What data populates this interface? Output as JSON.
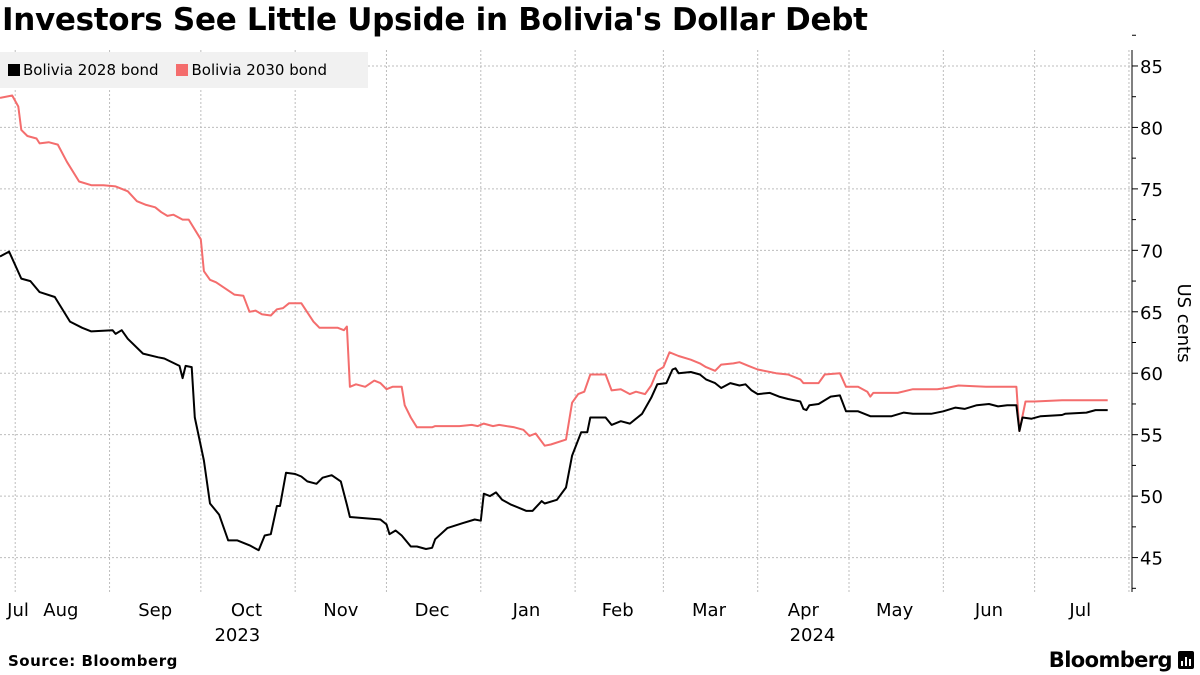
{
  "title": "Investors See Little Upside in Bolivia's Dollar Debt",
  "source": "Source: Bloomberg",
  "logo": "Bloomberg",
  "colors": {
    "bolivia_2028": "#000000",
    "bolivia_2030": "#f46d6d",
    "legend_bg": "#f1f1f1",
    "grid": "#bdbdbd"
  },
  "chart_data": {
    "type": "line",
    "title": "Investors See Little Upside in Bolivia's Dollar Debt",
    "ylabel": "US cents",
    "xlabel": "",
    "ylim": [
      42.2,
      86.3
    ],
    "xlim": [
      "2023-07-27",
      "2024-08-02"
    ],
    "yticks": [
      "45",
      "50",
      "55",
      "60",
      "65",
      "70",
      "75",
      "80",
      "85"
    ],
    "yaxis_side": "right",
    "grid": true,
    "legend_placement": "top-left",
    "xtick_labels": [
      {
        "label": "Jul",
        "date": "2023-07-29"
      },
      {
        "label": "Aug",
        "date": "2023-08-16"
      },
      {
        "label": "Sep",
        "date": "2023-09-16"
      },
      {
        "label": "Oct",
        "date": "2023-10-16"
      },
      {
        "label": "Nov",
        "date": "2023-11-16"
      },
      {
        "label": "Dec",
        "date": "2023-12-16"
      },
      {
        "label": "Jan",
        "date": "2024-01-16"
      },
      {
        "label": "Feb",
        "date": "2024-02-15"
      },
      {
        "label": "Mar",
        "date": "2024-03-16"
      },
      {
        "label": "Apr",
        "date": "2024-04-16"
      },
      {
        "label": "May",
        "date": "2024-05-16"
      },
      {
        "label": "Jun",
        "date": "2024-06-16"
      },
      {
        "label": "Jul",
        "date": "2024-07-16"
      }
    ],
    "year_labels": [
      {
        "label": "2023",
        "date": "2023-10-13"
      },
      {
        "label": "2024",
        "date": "2024-04-19"
      }
    ],
    "gridline_dates": [
      "2023-08-01",
      "2023-09-01",
      "2023-10-01",
      "2023-11-01",
      "2023-12-01",
      "2024-01-01",
      "2024-02-01",
      "2024-03-01",
      "2024-04-01",
      "2024-05-01",
      "2024-06-01",
      "2024-07-01",
      "2024-08-01"
    ],
    "series": [
      {
        "name": "Bolivia 2028 bond",
        "color": "#000000",
        "points": [
          [
            "2023-07-27",
            69.5
          ],
          [
            "2023-07-30",
            69.9
          ],
          [
            "2023-08-03",
            67.7
          ],
          [
            "2023-08-06",
            67.5
          ],
          [
            "2023-08-09",
            66.6
          ],
          [
            "2023-08-14",
            66.2
          ],
          [
            "2023-08-16",
            65.4
          ],
          [
            "2023-08-19",
            64.2
          ],
          [
            "2023-08-23",
            63.7
          ],
          [
            "2023-08-26",
            63.4
          ],
          [
            "2023-09-02",
            63.5
          ],
          [
            "2023-09-03",
            63.2
          ],
          [
            "2023-09-05",
            63.5
          ],
          [
            "2023-09-07",
            62.8
          ],
          [
            "2023-09-12",
            61.6
          ],
          [
            "2023-09-17",
            61.3
          ],
          [
            "2023-09-19",
            61.2
          ],
          [
            "2023-09-24",
            60.6
          ],
          [
            "2023-09-25",
            59.6
          ],
          [
            "2023-09-26",
            60.6
          ],
          [
            "2023-09-28",
            60.5
          ],
          [
            "2023-09-29",
            56.4
          ],
          [
            "2023-10-02",
            52.9
          ],
          [
            "2023-10-04",
            49.4
          ],
          [
            "2023-10-07",
            48.5
          ],
          [
            "2023-10-10",
            46.4
          ],
          [
            "2023-10-13",
            46.4
          ],
          [
            "2023-10-17",
            46.0
          ],
          [
            "2023-10-20",
            45.6
          ],
          [
            "2023-10-22",
            46.8
          ],
          [
            "2023-10-24",
            46.9
          ],
          [
            "2023-10-26",
            49.2
          ],
          [
            "2023-10-27",
            49.2
          ],
          [
            "2023-10-29",
            51.9
          ],
          [
            "2023-11-01",
            51.8
          ],
          [
            "2023-11-03",
            51.6
          ],
          [
            "2023-11-05",
            51.2
          ],
          [
            "2023-11-08",
            51.0
          ],
          [
            "2023-11-10",
            51.5
          ],
          [
            "2023-11-13",
            51.7
          ],
          [
            "2023-11-16",
            51.2
          ],
          [
            "2023-11-18",
            49.3
          ],
          [
            "2023-11-19",
            48.3
          ],
          [
            "2023-11-29",
            48.1
          ],
          [
            "2023-12-01",
            47.7
          ],
          [
            "2023-12-02",
            46.9
          ],
          [
            "2023-12-04",
            47.2
          ],
          [
            "2023-12-06",
            46.8
          ],
          [
            "2023-12-09",
            45.9
          ],
          [
            "2023-12-11",
            45.9
          ],
          [
            "2023-12-14",
            45.7
          ],
          [
            "2023-12-16",
            45.8
          ],
          [
            "2023-12-17",
            46.5
          ],
          [
            "2023-12-21",
            47.4
          ],
          [
            "2023-12-26",
            47.8
          ],
          [
            "2023-12-30",
            48.1
          ],
          [
            "2024-01-01",
            48.0
          ],
          [
            "2024-01-02",
            50.2
          ],
          [
            "2024-01-04",
            50.0
          ],
          [
            "2024-01-06",
            50.3
          ],
          [
            "2024-01-08",
            49.7
          ],
          [
            "2024-01-11",
            49.3
          ],
          [
            "2024-01-14",
            49.0
          ],
          [
            "2024-01-16",
            48.8
          ],
          [
            "2024-01-18",
            48.8
          ],
          [
            "2024-01-21",
            49.6
          ],
          [
            "2024-01-22",
            49.4
          ],
          [
            "2024-01-26",
            49.7
          ],
          [
            "2024-01-29",
            50.7
          ],
          [
            "2024-01-31",
            53.3
          ],
          [
            "2024-02-03",
            55.2
          ],
          [
            "2024-02-05",
            55.2
          ],
          [
            "2024-02-06",
            56.4
          ],
          [
            "2024-02-11",
            56.4
          ],
          [
            "2024-02-13",
            55.8
          ],
          [
            "2024-02-16",
            56.1
          ],
          [
            "2024-02-19",
            55.9
          ],
          [
            "2024-02-23",
            56.7
          ],
          [
            "2024-02-26",
            58.0
          ],
          [
            "2024-02-28",
            59.1
          ],
          [
            "2024-03-02",
            59.2
          ],
          [
            "2024-03-04",
            60.3
          ],
          [
            "2024-03-05",
            60.4
          ],
          [
            "2024-03-06",
            60.0
          ],
          [
            "2024-03-10",
            60.1
          ],
          [
            "2024-03-13",
            59.9
          ],
          [
            "2024-03-15",
            59.5
          ],
          [
            "2024-03-18",
            59.2
          ],
          [
            "2024-03-20",
            58.8
          ],
          [
            "2024-03-23",
            59.2
          ],
          [
            "2024-03-26",
            59.0
          ],
          [
            "2024-03-28",
            59.1
          ],
          [
            "2024-03-30",
            58.6
          ],
          [
            "2024-04-01",
            58.3
          ],
          [
            "2024-04-05",
            58.4
          ],
          [
            "2024-04-08",
            58.1
          ],
          [
            "2024-04-11",
            57.9
          ],
          [
            "2024-04-15",
            57.7
          ],
          [
            "2024-04-16",
            57.1
          ],
          [
            "2024-04-17",
            57.0
          ],
          [
            "2024-04-18",
            57.4
          ],
          [
            "2024-04-21",
            57.5
          ],
          [
            "2024-04-25",
            58.1
          ],
          [
            "2024-04-28",
            58.2
          ],
          [
            "2024-04-30",
            56.9
          ],
          [
            "2024-05-04",
            56.9
          ],
          [
            "2024-05-08",
            56.5
          ],
          [
            "2024-05-15",
            56.5
          ],
          [
            "2024-05-19",
            56.8
          ],
          [
            "2024-05-22",
            56.7
          ],
          [
            "2024-05-28",
            56.7
          ],
          [
            "2024-06-01",
            56.9
          ],
          [
            "2024-06-05",
            57.2
          ],
          [
            "2024-06-08",
            57.1
          ],
          [
            "2024-06-12",
            57.4
          ],
          [
            "2024-06-16",
            57.5
          ],
          [
            "2024-06-19",
            57.3
          ],
          [
            "2024-06-22",
            57.4
          ],
          [
            "2024-06-25",
            57.4
          ],
          [
            "2024-06-26",
            55.3
          ],
          [
            "2024-06-27",
            56.4
          ],
          [
            "2024-06-30",
            56.3
          ],
          [
            "2024-07-03",
            56.5
          ],
          [
            "2024-07-10",
            56.6
          ],
          [
            "2024-07-11",
            56.7
          ],
          [
            "2024-07-18",
            56.8
          ],
          [
            "2024-07-21",
            57.0
          ],
          [
            "2024-07-25",
            57.0
          ]
        ]
      },
      {
        "name": "Bolivia 2030 bond",
        "color": "#f46d6d",
        "points": [
          [
            "2023-07-27",
            82.4
          ],
          [
            "2023-07-31",
            82.6
          ],
          [
            "2023-08-02",
            81.7
          ],
          [
            "2023-08-03",
            79.8
          ],
          [
            "2023-08-05",
            79.3
          ],
          [
            "2023-08-08",
            79.1
          ],
          [
            "2023-08-09",
            78.7
          ],
          [
            "2023-08-12",
            78.8
          ],
          [
            "2023-08-15",
            78.6
          ],
          [
            "2023-08-18",
            77.2
          ],
          [
            "2023-08-22",
            75.6
          ],
          [
            "2023-08-26",
            75.3
          ],
          [
            "2023-08-30",
            75.3
          ],
          [
            "2023-09-03",
            75.2
          ],
          [
            "2023-09-07",
            74.8
          ],
          [
            "2023-09-10",
            74.0
          ],
          [
            "2023-09-13",
            73.7
          ],
          [
            "2023-09-16",
            73.5
          ],
          [
            "2023-09-18",
            73.1
          ],
          [
            "2023-09-20",
            72.8
          ],
          [
            "2023-09-22",
            72.9
          ],
          [
            "2023-09-25",
            72.5
          ],
          [
            "2023-09-27",
            72.5
          ],
          [
            "2023-10-01",
            70.9
          ],
          [
            "2023-10-02",
            68.3
          ],
          [
            "2023-10-04",
            67.6
          ],
          [
            "2023-10-06",
            67.4
          ],
          [
            "2023-10-09",
            66.9
          ],
          [
            "2023-10-12",
            66.4
          ],
          [
            "2023-10-15",
            66.3
          ],
          [
            "2023-10-17",
            65.0
          ],
          [
            "2023-10-19",
            65.1
          ],
          [
            "2023-10-21",
            64.8
          ],
          [
            "2023-10-24",
            64.7
          ],
          [
            "2023-10-26",
            65.2
          ],
          [
            "2023-10-28",
            65.3
          ],
          [
            "2023-10-30",
            65.7
          ],
          [
            "2023-11-03",
            65.7
          ],
          [
            "2023-11-07",
            64.2
          ],
          [
            "2023-11-09",
            63.7
          ],
          [
            "2023-11-15",
            63.7
          ],
          [
            "2023-11-17",
            63.5
          ],
          [
            "2023-11-18",
            63.8
          ],
          [
            "2023-11-19",
            58.9
          ],
          [
            "2023-11-21",
            59.1
          ],
          [
            "2023-11-24",
            58.9
          ],
          [
            "2023-11-27",
            59.4
          ],
          [
            "2023-11-29",
            59.2
          ],
          [
            "2023-12-01",
            58.7
          ],
          [
            "2023-12-03",
            58.9
          ],
          [
            "2023-12-06",
            58.9
          ],
          [
            "2023-12-07",
            57.4
          ],
          [
            "2023-12-09",
            56.4
          ],
          [
            "2023-12-11",
            55.6
          ],
          [
            "2023-12-16",
            55.6
          ],
          [
            "2023-12-17",
            55.7
          ],
          [
            "2023-12-25",
            55.7
          ],
          [
            "2023-12-29",
            55.8
          ],
          [
            "2023-12-31",
            55.7
          ],
          [
            "2024-01-02",
            55.9
          ],
          [
            "2024-01-05",
            55.7
          ],
          [
            "2024-01-07",
            55.8
          ],
          [
            "2024-01-12",
            55.6
          ],
          [
            "2024-01-15",
            55.4
          ],
          [
            "2024-01-17",
            54.9
          ],
          [
            "2024-01-19",
            55.1
          ],
          [
            "2024-01-22",
            54.1
          ],
          [
            "2024-01-24",
            54.2
          ],
          [
            "2024-01-29",
            54.6
          ],
          [
            "2024-01-31",
            57.6
          ],
          [
            "2024-02-02",
            58.3
          ],
          [
            "2024-02-04",
            58.5
          ],
          [
            "2024-02-06",
            59.9
          ],
          [
            "2024-02-11",
            59.9
          ],
          [
            "2024-02-13",
            58.6
          ],
          [
            "2024-02-16",
            58.7
          ],
          [
            "2024-02-19",
            58.3
          ],
          [
            "2024-02-21",
            58.5
          ],
          [
            "2024-02-24",
            58.3
          ],
          [
            "2024-02-26",
            59.0
          ],
          [
            "2024-02-28",
            60.2
          ],
          [
            "2024-03-01",
            60.5
          ],
          [
            "2024-03-03",
            61.7
          ],
          [
            "2024-03-06",
            61.4
          ],
          [
            "2024-03-10",
            61.1
          ],
          [
            "2024-03-13",
            60.8
          ],
          [
            "2024-03-15",
            60.5
          ],
          [
            "2024-03-18",
            60.2
          ],
          [
            "2024-03-20",
            60.7
          ],
          [
            "2024-03-24",
            60.8
          ],
          [
            "2024-03-26",
            60.9
          ],
          [
            "2024-03-29",
            60.6
          ],
          [
            "2024-04-01",
            60.3
          ],
          [
            "2024-04-07",
            60.0
          ],
          [
            "2024-04-11",
            59.9
          ],
          [
            "2024-04-15",
            59.5
          ],
          [
            "2024-04-16",
            59.2
          ],
          [
            "2024-04-21",
            59.2
          ],
          [
            "2024-04-23",
            59.9
          ],
          [
            "2024-04-28",
            60.0
          ],
          [
            "2024-04-30",
            58.9
          ],
          [
            "2024-05-04",
            58.9
          ],
          [
            "2024-05-07",
            58.5
          ],
          [
            "2024-05-08",
            58.1
          ],
          [
            "2024-05-09",
            58.4
          ],
          [
            "2024-05-17",
            58.4
          ],
          [
            "2024-05-22",
            58.7
          ],
          [
            "2024-05-30",
            58.7
          ],
          [
            "2024-06-02",
            58.8
          ],
          [
            "2024-06-06",
            59.0
          ],
          [
            "2024-06-15",
            58.9
          ],
          [
            "2024-06-25",
            58.9
          ],
          [
            "2024-06-26",
            55.3
          ],
          [
            "2024-06-28",
            57.7
          ],
          [
            "2024-07-01",
            57.7
          ],
          [
            "2024-07-10",
            57.8
          ],
          [
            "2024-07-18",
            57.8
          ],
          [
            "2024-07-25",
            57.8
          ]
        ]
      }
    ]
  }
}
